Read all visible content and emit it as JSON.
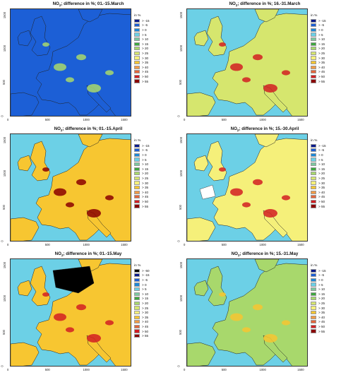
{
  "figure": {
    "legend_title": "in %"
  },
  "legend_scale": [
    {
      "label": "> -50",
      "color": "#000000"
    },
    {
      "label": "> -15",
      "color": "#0a1a8c"
    },
    {
      "label": "> -5",
      "color": "#1c5fd6"
    },
    {
      "label": "> 0",
      "color": "#1e88d8"
    },
    {
      "label": "> 5",
      "color": "#6cd0e6"
    },
    {
      "label": "> 10",
      "color": "#7cc8a0"
    },
    {
      "label": "> 15",
      "color": "#3da83f"
    },
    {
      "label": "> 20",
      "color": "#a8d86c"
    },
    {
      "label": "> 25",
      "color": "#d6e66e"
    },
    {
      "label": "> 30",
      "color": "#f5f07a"
    },
    {
      "label": "> 35",
      "color": "#f7c631"
    },
    {
      "label": "> 40",
      "color": "#f19a45"
    },
    {
      "label": "> 45",
      "color": "#e3653a"
    },
    {
      "label": "> 50",
      "color": "#d21e22"
    },
    {
      "label": "> 55",
      "color": "#8b0000"
    }
  ],
  "chart_data": [
    {
      "type": "heatmap",
      "title_prefix": "NO",
      "title_sub": "2",
      "title_suffix": "; difference in %; 01.-15.March",
      "x_ticks": [
        "0",
        "500",
        "1000",
        "1500"
      ],
      "y_ticks": [
        "0",
        "500",
        "1000",
        "1500"
      ],
      "xlim": [
        0,
        1600
      ],
      "ylim": [
        0,
        1600
      ],
      "legend_from": 1,
      "dominant_class": "> -5",
      "hotspot_class": "> 20"
    },
    {
      "type": "heatmap",
      "title_prefix": "NO",
      "title_sub": "2",
      "title_suffix": "; difference in %; 16.-31.March",
      "x_ticks": [
        "0",
        "500",
        "1000",
        "1500"
      ],
      "y_ticks": [
        "0",
        "500",
        "1000",
        "1500"
      ],
      "xlim": [
        0,
        1600
      ],
      "ylim": [
        0,
        1600
      ],
      "legend_from": 1,
      "dominant_class": "> 25",
      "hotspot_class": "> 50"
    },
    {
      "type": "heatmap",
      "title_prefix": "NO",
      "title_sub": "2",
      "title_suffix": "; difference in %; 01.-15.April",
      "x_ticks": [
        "0",
        "500",
        "1000",
        "1500"
      ],
      "y_ticks": [
        "0",
        "500",
        "1000",
        "1500"
      ],
      "xlim": [
        0,
        1600
      ],
      "ylim": [
        0,
        1600
      ],
      "legend_from": 1,
      "dominant_class": "> 35",
      "hotspot_class": "> 55"
    },
    {
      "type": "heatmap",
      "title_prefix": "NO",
      "title_sub": "2",
      "title_suffix": "; difference in %; 15.-30.April",
      "x_ticks": [
        "0",
        "500",
        "1000",
        "1500"
      ],
      "y_ticks": [
        "0",
        "500",
        "1000",
        "1500"
      ],
      "xlim": [
        0,
        1600
      ],
      "ylim": [
        0,
        1600
      ],
      "legend_from": 1,
      "dominant_class": "> 30",
      "hotspot_class": "> 50"
    },
    {
      "type": "heatmap",
      "title_prefix": "NO",
      "title_sub": "2",
      "title_suffix": "; difference in %; 01.-15.May",
      "x_ticks": [
        "0",
        "500",
        "1000",
        "1500"
      ],
      "y_ticks": [
        "0",
        "500",
        "1000",
        "1500"
      ],
      "xlim": [
        0,
        1600
      ],
      "ylim": [
        0,
        1600
      ],
      "legend_from": 0,
      "dominant_class": "> 35",
      "hotspot_class": "> 50"
    },
    {
      "type": "heatmap",
      "title_prefix": "NO",
      "title_sub": "2",
      "title_suffix": "; difference in %; 15.-31.May",
      "x_ticks": [
        "0",
        "500",
        "1000",
        "1500"
      ],
      "y_ticks": [
        "0",
        "500",
        "1000",
        "1500"
      ],
      "xlim": [
        0,
        1600
      ],
      "ylim": [
        0,
        1600
      ],
      "legend_from": 1,
      "dominant_class": "> 20",
      "hotspot_class": "> 35"
    }
  ]
}
